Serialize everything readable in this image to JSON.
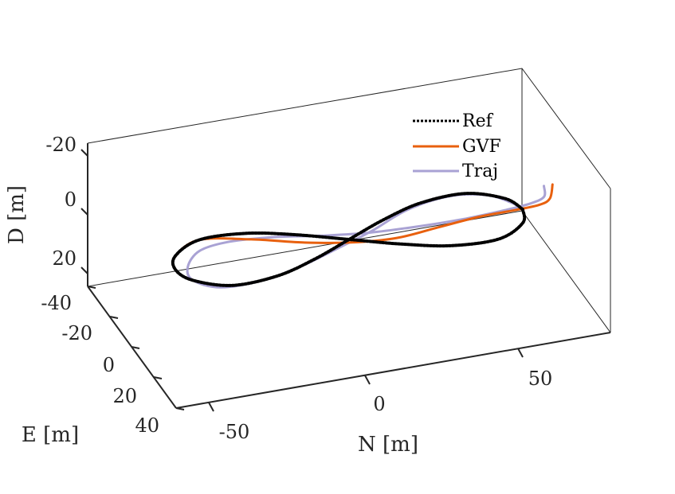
{
  "chart_data": {
    "type": "line",
    "projection": "3d",
    "axes": {
      "x": {
        "label": "N [m]",
        "ticks": [
          "-50",
          "0",
          "50"
        ],
        "tick_values": [
          -50,
          0,
          50
        ],
        "range": [
          -75,
          75
        ]
      },
      "y": {
        "label": "E [m]",
        "ticks": [
          "-40",
          "-20",
          "0",
          "20",
          "40"
        ],
        "tick_values": [
          -40,
          -20,
          0,
          20,
          40
        ],
        "range": [
          -40,
          40
        ]
      },
      "z": {
        "label": "D [m]",
        "ticks": [
          "-20",
          "0",
          "20"
        ],
        "tick_values": [
          -20,
          0,
          20
        ],
        "range": [
          -20,
          20
        ],
        "reversed": true
      }
    },
    "legend": {
      "placement": "top-right",
      "entries": [
        "Ref",
        "GVF",
        "Traj"
      ]
    },
    "series": [
      {
        "name": "Ref",
        "color": "#000000",
        "style": "dotted",
        "description_shape": "figure-eight",
        "points": [
          [
            60,
            0,
            0
          ],
          [
            57,
            8,
            0
          ],
          [
            46,
            15,
            0
          ],
          [
            30,
            14,
            0
          ],
          [
            15,
            8,
            0
          ],
          [
            0,
            0,
            0
          ],
          [
            -15,
            -8,
            0
          ],
          [
            -30,
            -14,
            0
          ],
          [
            -46,
            -15,
            0
          ],
          [
            -57,
            -8,
            0
          ],
          [
            -60,
            0,
            0
          ],
          [
            -57,
            8,
            0
          ],
          [
            -46,
            15,
            0
          ],
          [
            -30,
            14,
            0
          ],
          [
            -15,
            8,
            0
          ],
          [
            0,
            0,
            0
          ],
          [
            15,
            -8,
            0
          ],
          [
            30,
            -14,
            0
          ],
          [
            46,
            -15,
            0
          ],
          [
            57,
            -8,
            0
          ],
          [
            60,
            0,
            0
          ]
        ]
      },
      {
        "name": "GVF",
        "color": "#E8600E",
        "style": "solid",
        "points": [
          [
            78,
            -20,
            5
          ],
          [
            74,
            -12,
            5
          ],
          [
            68,
            -6,
            3
          ],
          [
            58,
            -2,
            1
          ],
          [
            45,
            0,
            0
          ],
          [
            30,
            2,
            0
          ],
          [
            15,
            4,
            0
          ],
          [
            0,
            2,
            0
          ],
          [
            -15,
            -3,
            0
          ],
          [
            -30,
            -10,
            0
          ],
          [
            -46,
            -15,
            0
          ],
          [
            -57,
            -8,
            0
          ],
          [
            -60,
            0,
            0
          ],
          [
            -57,
            8,
            0
          ],
          [
            -46,
            15,
            0
          ],
          [
            -30,
            14,
            0
          ],
          [
            -15,
            8,
            0
          ],
          [
            0,
            0,
            0
          ],
          [
            15,
            -8,
            0
          ],
          [
            30,
            -14,
            0
          ],
          [
            46,
            -15,
            0
          ],
          [
            57,
            -8,
            0
          ],
          [
            60,
            0,
            0
          ]
        ]
      },
      {
        "name": "Traj",
        "color": "#A9A2D4",
        "style": "solid",
        "points": [
          [
            75,
            -20,
            5
          ],
          [
            72,
            -12,
            4
          ],
          [
            65,
            -6,
            2
          ],
          [
            55,
            -3,
            1
          ],
          [
            40,
            -2,
            1
          ],
          [
            25,
            -4,
            2
          ],
          [
            10,
            -7,
            3
          ],
          [
            -5,
            -10,
            3
          ],
          [
            -20,
            -14,
            3
          ],
          [
            -35,
            -16,
            3
          ],
          [
            -47,
            -12,
            2
          ],
          [
            -55,
            -2,
            1
          ],
          [
            -57,
            8,
            0
          ],
          [
            -50,
            15,
            0
          ],
          [
            -35,
            15,
            0
          ],
          [
            -20,
            9,
            1
          ],
          [
            -5,
            1,
            2
          ],
          [
            10,
            -6,
            2
          ],
          [
            25,
            -13,
            1
          ],
          [
            40,
            -15,
            0
          ],
          [
            52,
            -12,
            0
          ],
          [
            58,
            -5,
            0
          ],
          [
            60,
            0,
            0
          ]
        ]
      }
    ]
  }
}
